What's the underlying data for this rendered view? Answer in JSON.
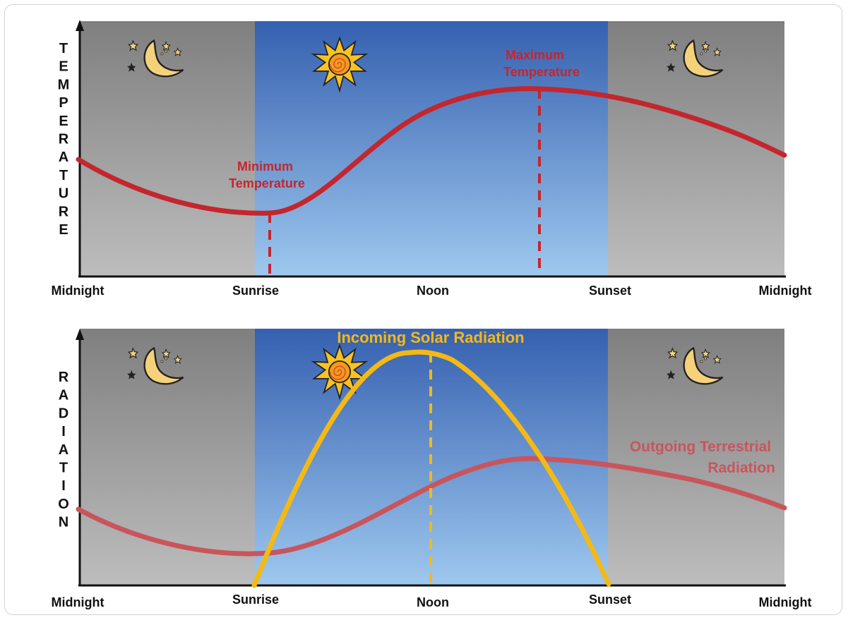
{
  "panels": {
    "top": {
      "vertical_label": "TEMPERATURE",
      "tick_labels": [
        "Midnight",
        "Sunrise",
        "Noon",
        "Sunset",
        "Midnight"
      ],
      "min_label": [
        "Minimum",
        "Temperature"
      ],
      "max_label": [
        "Maximum",
        "Temperature"
      ]
    },
    "bottom": {
      "vertical_label": "RADIATION",
      "tick_labels": [
        "Midnight",
        "Sunrise",
        "Noon",
        "Sunset",
        "Midnight"
      ],
      "incoming_label": "Incoming Solar Radiation",
      "outgoing_label": [
        "Outgoing Terrestrial",
        "Radiation"
      ]
    }
  },
  "colors": {
    "night": "#8f8f8f",
    "day_top": "#3a62b0",
    "day_bottom": "#9ac3ea",
    "temperature_curve": "#c4262e",
    "solar_curve": "#f5b914",
    "terrestrial_curve": "#c9555c"
  },
  "icons": [
    "moon-stars-icon",
    "sun-icon"
  ]
}
